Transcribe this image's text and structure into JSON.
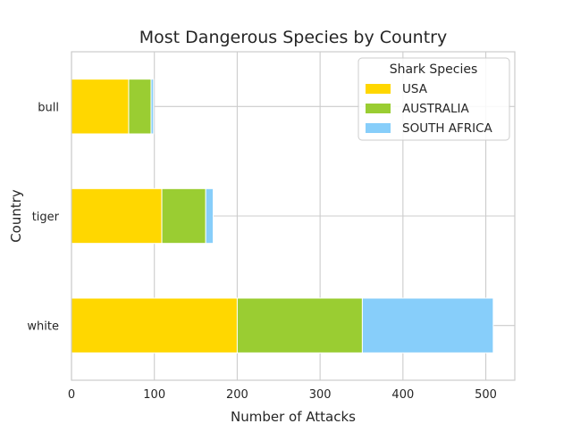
{
  "chart_data": {
    "type": "bar",
    "orientation": "horizontal",
    "stacked": true,
    "title": "Most Dangerous Species by Country",
    "xlabel": "Number of Attacks",
    "ylabel": "Country",
    "categories": [
      "white",
      "tiger",
      "bull"
    ],
    "series": [
      {
        "name": "USA",
        "values": [
          200,
          109,
          69
        ],
        "color": "#FFD700"
      },
      {
        "name": "AUSTRALIA",
        "values": [
          151,
          53,
          27
        ],
        "color": "#9ACD32"
      },
      {
        "name": "SOUTH AFRICA",
        "values": [
          158,
          9,
          3
        ],
        "color": "#87CEFA"
      }
    ],
    "xlim": [
      0,
      535
    ],
    "xticks": [
      0,
      100,
      200,
      300,
      400,
      500
    ],
    "grid": true,
    "legend": {
      "title": "Shark Species",
      "placement": "upper right"
    }
  }
}
